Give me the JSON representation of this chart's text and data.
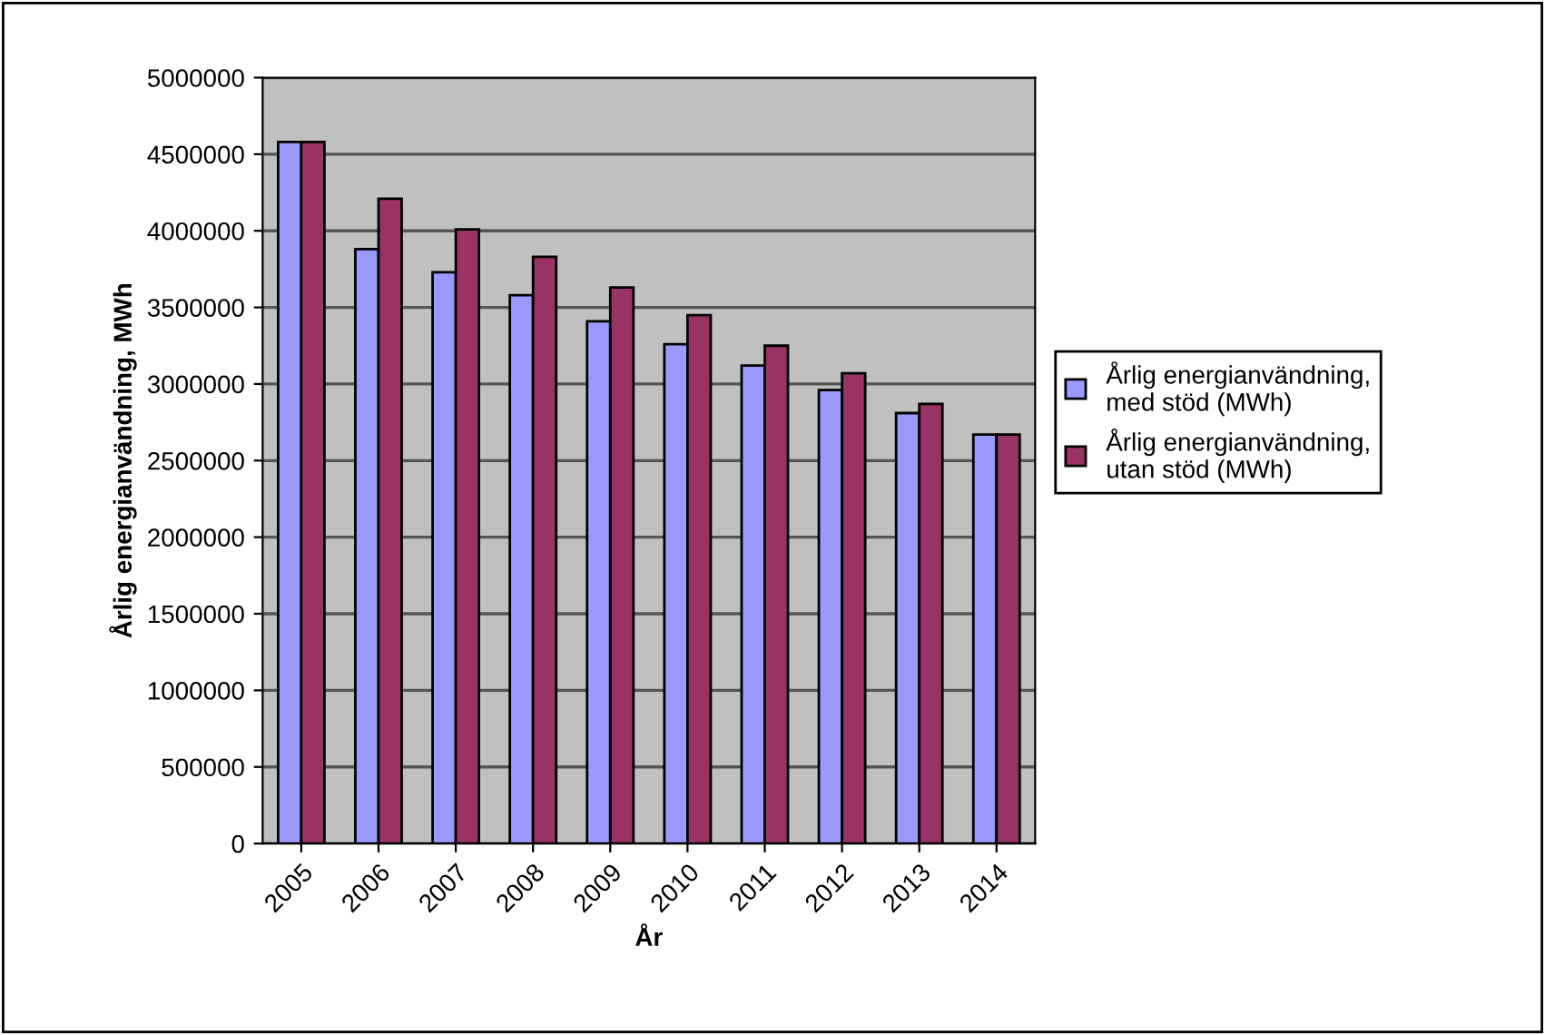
{
  "chart_data": {
    "type": "bar",
    "xlabel": "År",
    "ylabel": "Årlig energianvändning, MWh",
    "categories": [
      "2005",
      "2006",
      "2007",
      "2008",
      "2009",
      "2010",
      "2011",
      "2012",
      "2013",
      "2014"
    ],
    "series": [
      {
        "name": "Årlig energianvändning, med stöd (MWh)",
        "color": "#9999ff",
        "values": [
          4580000,
          3880000,
          3730000,
          3580000,
          3410000,
          3260000,
          3120000,
          2960000,
          2810000,
          2670000
        ]
      },
      {
        "name": "Årlig energianvändning, utan stöd (MWh)",
        "color": "#993366",
        "values": [
          4580000,
          4210000,
          4010000,
          3830000,
          3630000,
          3450000,
          3250000,
          3070000,
          2870000,
          2670000
        ]
      }
    ],
    "ylim": [
      0,
      5000000
    ],
    "yticks": [
      0,
      500000,
      1000000,
      1500000,
      2000000,
      2500000,
      3000000,
      3500000,
      4000000,
      4500000,
      5000000
    ],
    "grid": "y",
    "legend": "right"
  }
}
